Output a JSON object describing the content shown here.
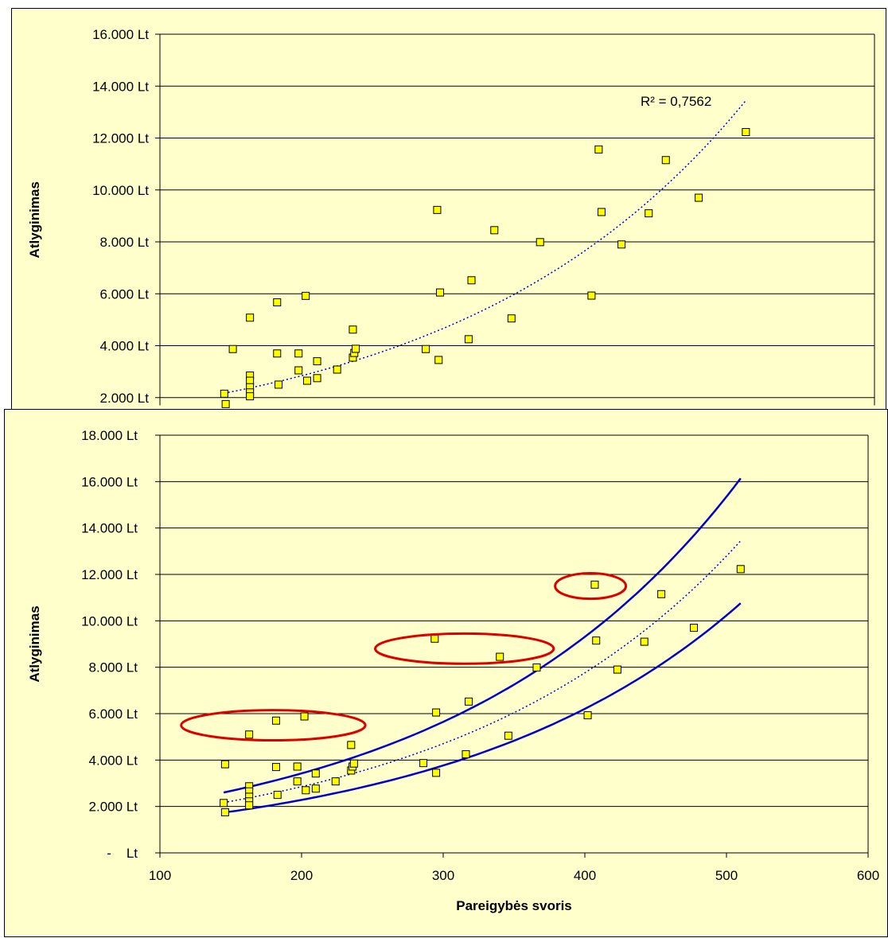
{
  "chart_data": [
    {
      "type": "scatter",
      "ylabel": "Atlyginimas",
      "yticks": [
        "2.000 Lt",
        "4.000 Lt",
        "6.000 Lt",
        "8.000 Lt",
        "10.000 Lt",
        "12.000 Lt",
        "14.000 Lt",
        "16.000 Lt"
      ],
      "ylim": [
        1700,
        16000
      ],
      "xlim": [
        100,
        600
      ],
      "grid": true,
      "annotation": {
        "text": "R² = 0,7562"
      },
      "trendline": {
        "type": "exponential",
        "style": "dotted",
        "color": "#0000cc",
        "x_range": [
          145,
          510
        ],
        "a": 1050,
        "b": 0.005
      },
      "series": [
        {
          "color": "#ffff00",
          "x": [
            145,
            146,
            151,
            163,
            163,
            163,
            163,
            163,
            163,
            182,
            182,
            183,
            197,
            197,
            202,
            203,
            210,
            210,
            224,
            235,
            235,
            236,
            237,
            286,
            294,
            295,
            296,
            316,
            318,
            334,
            346,
            366,
            402,
            407,
            409,
            423,
            442,
            454,
            477,
            510
          ],
          "y": [
            2150,
            1750,
            3870,
            5080,
            2850,
            2650,
            2400,
            2200,
            2050,
            5670,
            3700,
            2500,
            3050,
            3700,
            5920,
            2650,
            3400,
            2750,
            3080,
            4620,
            3540,
            3720,
            3880,
            3870,
            9230,
            3450,
            6050,
            4250,
            6520,
            8450,
            5050,
            7990,
            5930,
            11560,
            9150,
            7900,
            9100,
            11150,
            9700,
            12230
          ]
        }
      ]
    },
    {
      "type": "scatter",
      "ylabel": "Atlyginimas",
      "xlabel": "Pareigybės svoris",
      "yticks": [
        "-    Lt",
        "2.000 Lt",
        "4.000 Lt",
        "6.000 Lt",
        "8.000 Lt",
        "10.000 Lt",
        "12.000 Lt",
        "14.000 Lt",
        "16.000 Lt",
        "18.000 Lt"
      ],
      "xticks": [
        "100",
        "200",
        "300",
        "400",
        "500",
        "600"
      ],
      "ylim": [
        0,
        18000
      ],
      "xlim": [
        100,
        600
      ],
      "grid": true,
      "trendline": {
        "type": "exponential",
        "style": "dotted",
        "color": "#0000cc",
        "x_range": [
          145,
          510
        ],
        "a": 1050,
        "b": 0.005
      },
      "bands": [
        {
          "name": "upper",
          "style": "solid",
          "color": "#0000cc",
          "x_range": [
            145,
            510
          ],
          "a": 1260,
          "b": 0.005
        },
        {
          "name": "lower",
          "style": "solid",
          "color": "#0000cc",
          "x_range": [
            145,
            510
          ],
          "a": 840,
          "b": 0.005
        }
      ],
      "highlight_ellipses": [
        {
          "cx": 180,
          "cy": 5500,
          "rx": 65,
          "ry": 650,
          "color": "#dd0000"
        },
        {
          "cx": 315,
          "cy": 8800,
          "rx": 63,
          "ry": 650,
          "color": "#dd0000"
        },
        {
          "cx": 404,
          "cy": 11500,
          "rx": 25,
          "ry": 550,
          "color": "#dd0000"
        }
      ],
      "series": [
        {
          "color": "#ffff00",
          "x": [
            145,
            146,
            146,
            163,
            163,
            163,
            163,
            163,
            163,
            182,
            182,
            183,
            197,
            197,
            202,
            203,
            210,
            210,
            224,
            235,
            235,
            236,
            237,
            286,
            294,
            295,
            295,
            316,
            318,
            340,
            346,
            366,
            402,
            407,
            408,
            423,
            442,
            454,
            477,
            510
          ],
          "y": [
            2150,
            1750,
            3820,
            5100,
            2870,
            2650,
            2420,
            2220,
            2050,
            5700,
            3700,
            2500,
            3080,
            3720,
            5880,
            2700,
            3420,
            2770,
            3080,
            4650,
            3550,
            3720,
            3850,
            3870,
            9230,
            3450,
            6050,
            4250,
            6520,
            8450,
            5050,
            7990,
            5930,
            11560,
            9150,
            7900,
            9100,
            11150,
            9700,
            12230
          ]
        }
      ]
    }
  ]
}
